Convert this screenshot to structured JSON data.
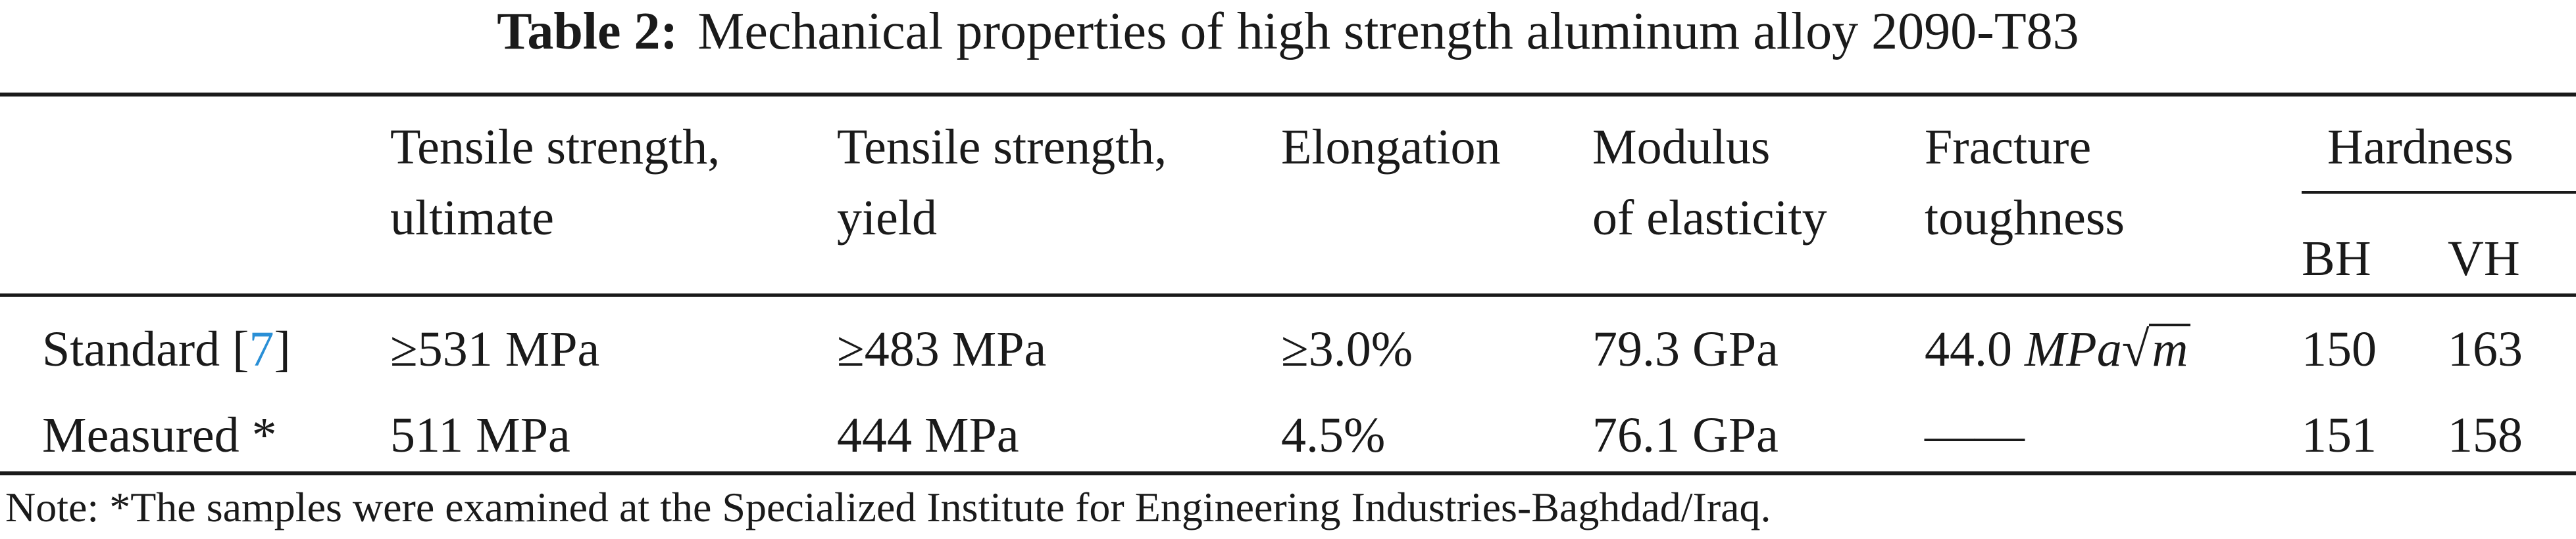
{
  "caption": {
    "label": "Table 2:",
    "text": "Mechanical properties of high strength aluminum alloy 2090-T83"
  },
  "columns": {
    "tensile_ultimate": [
      "Tensile strength,",
      "ultimate"
    ],
    "tensile_yield": [
      "Tensile strength,",
      "yield"
    ],
    "elongation": [
      "Elongation"
    ],
    "modulus": [
      "Modulus",
      "of elasticity"
    ],
    "fracture": [
      "Fracture",
      "toughness"
    ],
    "hardness": {
      "title": "Hardness",
      "sub": [
        "BH",
        "VH"
      ]
    }
  },
  "rows": [
    {
      "label": "Standard",
      "ref": "7",
      "tensile_ultimate": "≥531 MPa",
      "tensile_yield": "≥483 MPa",
      "elongation": "≥3.0%",
      "modulus": "79.3 GPa",
      "fracture": {
        "value": "44.0",
        "unit": "MPa",
        "root": "m"
      },
      "bh": "150",
      "vh": "163"
    },
    {
      "label": "Measured *",
      "tensile_ultimate": "511 MPa",
      "tensile_yield": "444 MPa",
      "elongation": "4.5%",
      "modulus": "76.1 GPa",
      "fracture": "——",
      "bh": "151",
      "vh": "158"
    }
  ],
  "note": "Note: *The samples were examined at the Specialized Institute for Engineering Industries-Baghdad/Iraq.",
  "colors": {
    "text": "#1a1a1a",
    "reference_link": "#2a8fd6"
  }
}
